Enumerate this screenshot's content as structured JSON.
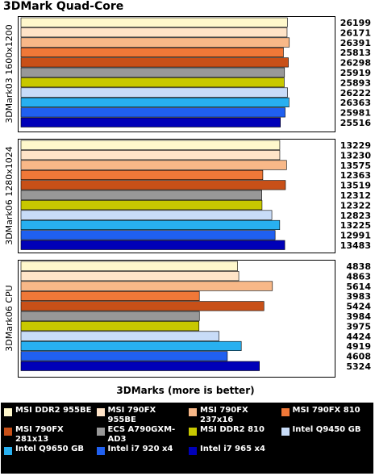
{
  "chart_data": {
    "type": "bar",
    "orientation": "horizontal",
    "title": "3DMark Quad-Core",
    "xlabel": "3DMarks (more is better)",
    "legend_position": "bottom",
    "grid": false,
    "series": [
      {
        "name": "MSI DDR2 955BE",
        "color": "#fff8cc"
      },
      {
        "name": "MSI 790FX 955BE",
        "color": "#ffe4c8"
      },
      {
        "name": "MSI 790FX 237x16",
        "color": "#f8b888"
      },
      {
        "name": "MSI 790FX 810",
        "color": "#f07838"
      },
      {
        "name": "MSI 790FX 281x13",
        "color": "#c85018"
      },
      {
        "name": "ECS A790GXM-AD3",
        "color": "#989898"
      },
      {
        "name": "MSI DDR2 810",
        "color": "#c8c800"
      },
      {
        "name": "Intel Q9450 GB",
        "color": "#c8dcf8"
      },
      {
        "name": "Intel Q9650 GB",
        "color": "#28b0f0"
      },
      {
        "name": "Intel i7 920 x4",
        "color": "#2060f0"
      },
      {
        "name": "Intel i7 965 x4",
        "color": "#0000b8"
      }
    ],
    "groups": [
      {
        "label": "3DMark03 1600x1200",
        "values": [
          26199,
          26171,
          26391,
          25813,
          26298,
          25919,
          25893,
          26222,
          26363,
          25981,
          25516
        ]
      },
      {
        "label": "3DMark06 1280x1024",
        "values": [
          13229,
          13230,
          13575,
          12363,
          13519,
          12312,
          12322,
          12823,
          13225,
          12991,
          13483
        ]
      },
      {
        "label": "3DMark06 CPU",
        "values": [
          4838,
          4863,
          5614,
          3983,
          5424,
          3984,
          3975,
          4424,
          4919,
          4608,
          5324
        ]
      }
    ]
  }
}
